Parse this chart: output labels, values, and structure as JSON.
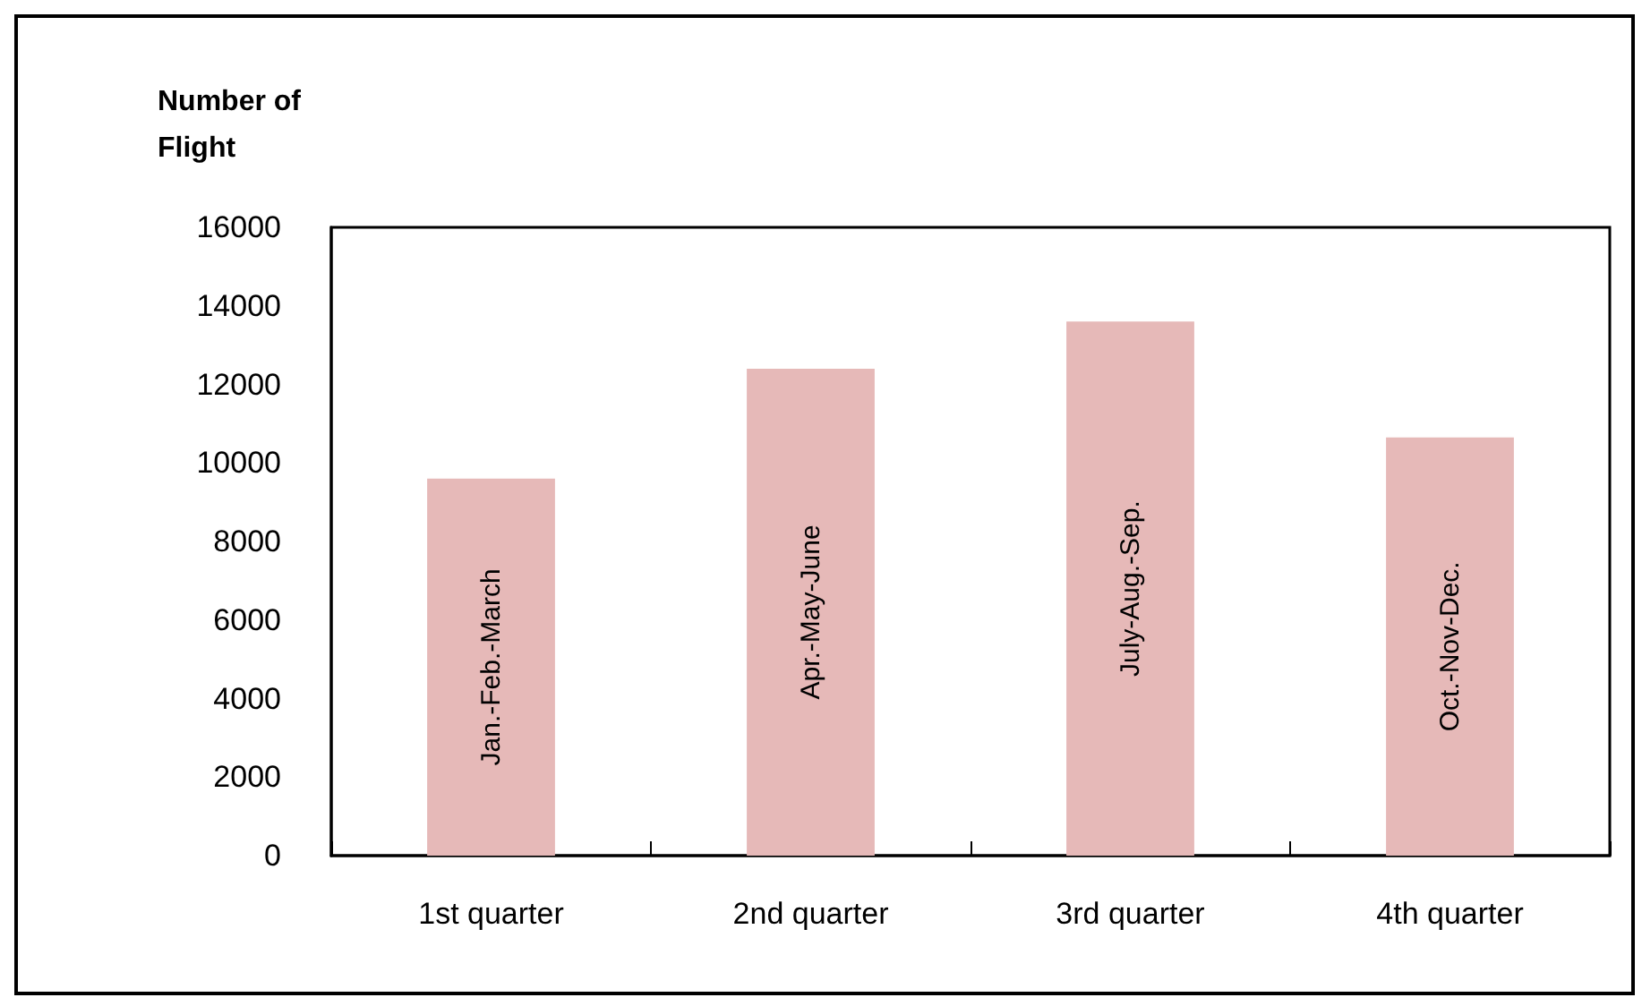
{
  "chart_data": {
    "type": "bar",
    "ylabel": "Number of Flight",
    "categories": [
      "1st quarter",
      "2nd quarter",
      "3rd quarter",
      "4th quarter"
    ],
    "values": [
      9600,
      12400,
      13600,
      10650
    ],
    "color": "#e6b9b8",
    "ylim": [
      0,
      16000
    ],
    "yticks": [
      0,
      2000,
      4000,
      6000,
      8000,
      10000,
      12000,
      14000,
      16000
    ],
    "grid": false,
    "annotations": [
      "Jan.-Feb.-March",
      "Apr.-May-June",
      "July-Aug.-Sep.",
      "Oct.-Nov-Dec."
    ]
  }
}
